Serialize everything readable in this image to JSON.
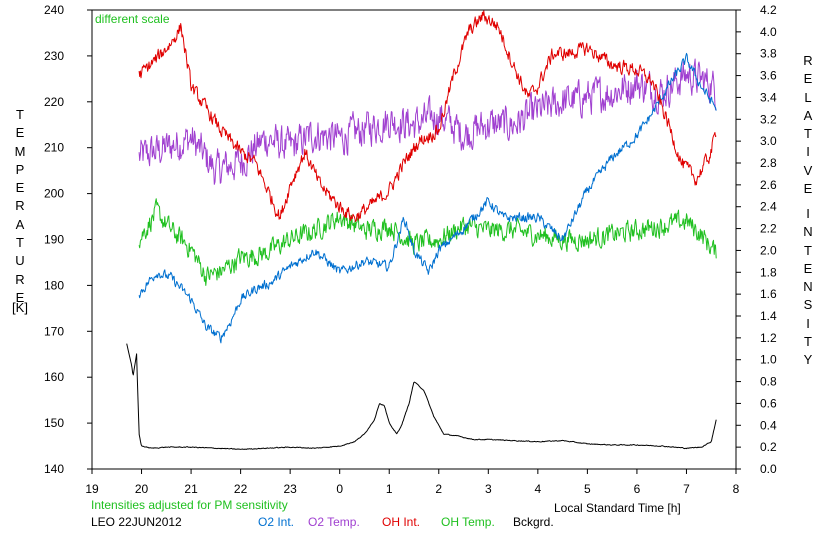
{
  "chart_data": {
    "type": "line",
    "annotation": "different scale",
    "note": "Intensities adjusted for PM sensitivity",
    "station_date": "LEO 22JUN2012",
    "xlabel": "Local Standard Time [h]",
    "ylabel_left_letters": [
      "T",
      "E",
      "M",
      "P",
      "E",
      "R",
      "A",
      "T",
      "U",
      "R",
      "E"
    ],
    "ylabel_left_unit": "[K]",
    "ylabel_right_letters_1": [
      "R",
      "E",
      "L",
      "A",
      "T",
      "I",
      "V",
      "E"
    ],
    "ylabel_right_letters_2": [
      "I",
      "N",
      "T",
      "E",
      "N",
      "S",
      "I",
      "T",
      "Y"
    ],
    "x_ticks": [
      "19",
      "20",
      "21",
      "22",
      "23",
      "0",
      "1",
      "2",
      "3",
      "4",
      "5",
      "6",
      "7",
      "8"
    ],
    "x_range": [
      19,
      32
    ],
    "y_left_range": [
      140,
      240
    ],
    "y_left_ticks": [
      "140",
      "150",
      "160",
      "170",
      "180",
      "190",
      "200",
      "210",
      "220",
      "230",
      "240"
    ],
    "y_right_range": [
      0,
      4.2
    ],
    "y_right_ticks": [
      "0.0",
      "0.2",
      "0.4",
      "0.6",
      "0.8",
      "1.0",
      "1.2",
      "1.4",
      "1.6",
      "1.8",
      "2.0",
      "2.2",
      "2.4",
      "2.6",
      "2.8",
      "3.0",
      "3.2",
      "3.4",
      "3.6",
      "3.8",
      "4.0",
      "4.2"
    ],
    "legend": [
      {
        "name": "O2 Int.",
        "color": "#0070d0"
      },
      {
        "name": "O2 Temp.",
        "color": "#a040d0"
      },
      {
        "name": "OH Int.",
        "color": "#e00000"
      },
      {
        "name": "OH Temp.",
        "color": "#20c020"
      },
      {
        "name": "Bckgrd.",
        "color": "#000000"
      }
    ],
    "series": [
      {
        "key": "o2_temp",
        "axis": "left",
        "color": "#a040d0",
        "noise": 6,
        "x": [
          19.95,
          20.5,
          21.0,
          21.5,
          22.0,
          22.5,
          23.0,
          23.5,
          24.0,
          24.5,
          25.0,
          25.5,
          26.0,
          26.5,
          27.0,
          27.5,
          28.0,
          28.5,
          29.0,
          29.5,
          30.0,
          30.5,
          31.0,
          31.5,
          31.6
        ],
        "y": [
          208,
          210,
          212,
          205,
          207,
          212,
          210,
          213,
          212,
          214,
          216,
          215,
          217,
          213,
          215,
          215,
          218,
          220,
          221,
          222,
          224,
          222,
          226,
          224,
          222
        ]
      },
      {
        "key": "oh_temp",
        "axis": "left",
        "color": "#20c020",
        "noise": 3.5,
        "x": [
          19.95,
          20.3,
          20.6,
          21.0,
          21.3,
          21.6,
          22.0,
          22.5,
          23.0,
          23.5,
          24.0,
          24.5,
          25.0,
          25.5,
          26.0,
          26.5,
          27.0,
          27.5,
          28.0,
          28.5,
          29.0,
          29.5,
          30.0,
          30.5,
          31.0,
          31.3,
          31.6
        ],
        "y": [
          190,
          196,
          192,
          188,
          182,
          183,
          186,
          187,
          190,
          192,
          195,
          192,
          193,
          189,
          190,
          193,
          192,
          192,
          191,
          190,
          190,
          191,
          192,
          193,
          194,
          191,
          187
        ]
      },
      {
        "key": "o2_int",
        "axis": "right",
        "color": "#0070d0",
        "noise": 0.07,
        "x": [
          19.95,
          20.3,
          20.6,
          21.0,
          21.3,
          21.6,
          21.8,
          22.0,
          22.3,
          22.6,
          23.0,
          23.5,
          24.0,
          24.5,
          25.0,
          25.3,
          25.5,
          25.8,
          26.0,
          26.5,
          27.0,
          27.3,
          27.5,
          28.0,
          28.5,
          29.0,
          29.5,
          30.0,
          30.3,
          30.5,
          30.7,
          31.0,
          31.3,
          31.6
        ],
        "y": [
          1.6,
          1.8,
          1.75,
          1.55,
          1.3,
          1.2,
          1.35,
          1.55,
          1.65,
          1.7,
          1.85,
          2.0,
          1.8,
          1.9,
          1.85,
          2.3,
          2.0,
          1.8,
          2.0,
          2.2,
          2.45,
          2.3,
          2.3,
          2.3,
          2.1,
          2.55,
          2.85,
          3.05,
          3.25,
          3.4,
          3.55,
          3.75,
          3.5,
          3.3
        ]
      },
      {
        "key": "oh_int",
        "axis": "right",
        "color": "#e00000",
        "noise": 0.1,
        "x": [
          19.95,
          20.3,
          20.6,
          20.8,
          21.0,
          21.3,
          21.6,
          22.0,
          22.3,
          22.5,
          22.8,
          23.0,
          23.3,
          23.6,
          24.0,
          24.3,
          24.6,
          25.0,
          25.3,
          25.6,
          26.0,
          26.3,
          26.6,
          26.9,
          27.2,
          27.5,
          27.8,
          28.0,
          28.3,
          28.6,
          29.0,
          29.5,
          30.0,
          30.3,
          30.6,
          30.9,
          31.2,
          31.5,
          31.6
        ],
        "y": [
          3.6,
          3.75,
          3.9,
          4.05,
          3.5,
          3.3,
          3.1,
          2.9,
          2.8,
          2.6,
          2.3,
          2.6,
          2.9,
          2.6,
          2.4,
          2.3,
          2.4,
          2.55,
          2.8,
          3.0,
          3.1,
          3.6,
          4.0,
          4.15,
          4.05,
          3.7,
          3.4,
          3.5,
          3.8,
          3.8,
          3.85,
          3.7,
          3.65,
          3.55,
          3.2,
          2.8,
          2.65,
          2.9,
          3.1
        ]
      },
      {
        "key": "bckgrd",
        "axis": "right",
        "color": "#000000",
        "noise": 0.006,
        "x": [
          19.7,
          19.8,
          19.83,
          19.9,
          19.95,
          20.0,
          20.2,
          20.5,
          21.0,
          21.5,
          22.0,
          22.5,
          23.0,
          23.5,
          24.0,
          24.3,
          24.5,
          24.7,
          24.8,
          24.9,
          25.0,
          25.15,
          25.25,
          25.4,
          25.5,
          25.7,
          25.9,
          26.1,
          26.4,
          26.7,
          27.0,
          27.5,
          28.0,
          28.5,
          29.0,
          29.5,
          30.0,
          30.5,
          31.0,
          31.3,
          31.5,
          31.6
        ],
        "y": [
          1.15,
          0.95,
          0.85,
          1.05,
          0.32,
          0.21,
          0.19,
          0.2,
          0.2,
          0.19,
          0.18,
          0.19,
          0.2,
          0.19,
          0.21,
          0.25,
          0.32,
          0.45,
          0.6,
          0.58,
          0.42,
          0.32,
          0.4,
          0.6,
          0.8,
          0.72,
          0.48,
          0.32,
          0.3,
          0.27,
          0.27,
          0.26,
          0.25,
          0.26,
          0.23,
          0.22,
          0.22,
          0.21,
          0.19,
          0.2,
          0.25,
          0.45
        ]
      }
    ]
  }
}
